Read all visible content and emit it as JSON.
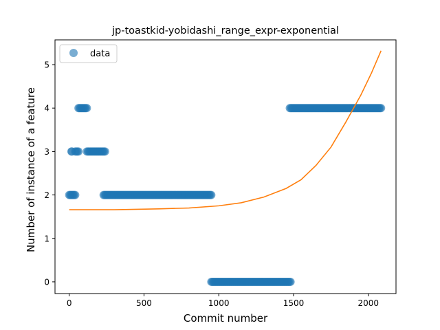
{
  "chart_data": {
    "type": "scatter",
    "title": "jp-toastkid-yobidashi_range_expr-exponential",
    "xlabel": "Commit number",
    "ylabel": "Number of instance of a feature",
    "xlim": [
      -95,
      2185
    ],
    "ylim": [
      -0.27,
      5.57
    ],
    "xticks": [
      0,
      500,
      1000,
      1500,
      2000
    ],
    "yticks": [
      0,
      1,
      2,
      3,
      4,
      5
    ],
    "legend": {
      "position": "top-left",
      "entries": [
        {
          "label": "data",
          "marker": "circle",
          "color": "#1f77b4"
        }
      ]
    },
    "series": [
      {
        "name": "data",
        "kind": "scatter",
        "color": "#1f77b4",
        "segments": [
          {
            "y": 2,
            "x_start": 0,
            "x_end": 40
          },
          {
            "y": 3,
            "x_start": 15,
            "x_end": 18
          },
          {
            "y": 3,
            "x_start": 40,
            "x_end": 62
          },
          {
            "y": 4,
            "x_start": 62,
            "x_end": 118
          },
          {
            "y": 3,
            "x_start": 118,
            "x_end": 240
          },
          {
            "y": 2,
            "x_start": 230,
            "x_end": 950
          },
          {
            "y": 0,
            "x_start": 950,
            "x_end": 1480
          },
          {
            "y": 4,
            "x_start": 1475,
            "x_end": 2085
          }
        ]
      },
      {
        "name": "",
        "kind": "line",
        "color": "#ff7f0e",
        "points": [
          [
            0,
            1.66
          ],
          [
            300,
            1.66
          ],
          [
            600,
            1.68
          ],
          [
            800,
            1.7
          ],
          [
            1000,
            1.75
          ],
          [
            1150,
            1.82
          ],
          [
            1300,
            1.95
          ],
          [
            1450,
            2.15
          ],
          [
            1550,
            2.35
          ],
          [
            1650,
            2.68
          ],
          [
            1750,
            3.1
          ],
          [
            1850,
            3.68
          ],
          [
            1950,
            4.3
          ],
          [
            2020,
            4.8
          ],
          [
            2085,
            5.32
          ]
        ]
      }
    ]
  }
}
